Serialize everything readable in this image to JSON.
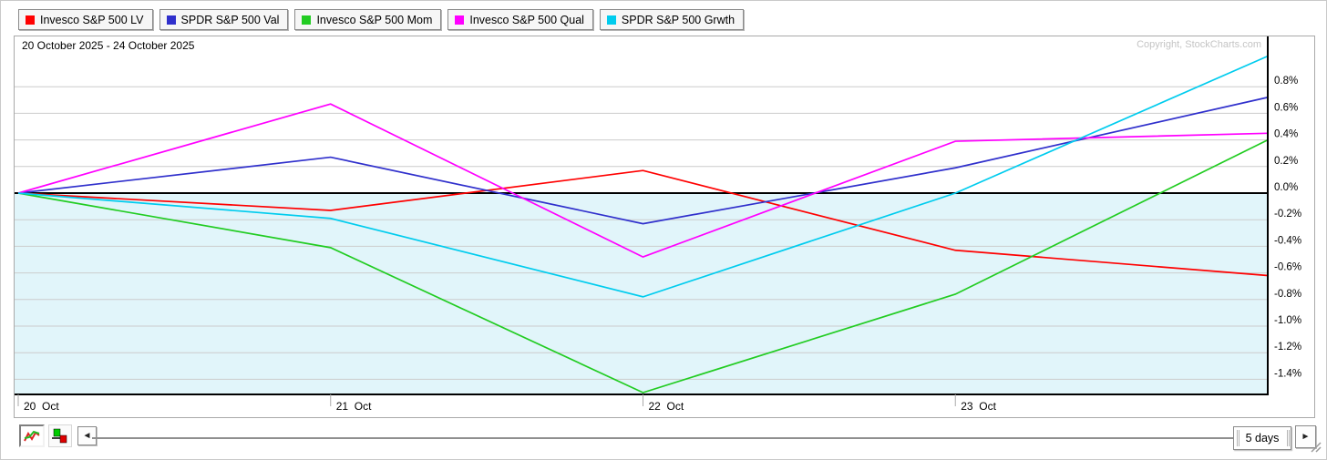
{
  "header": {
    "date_range": "20 October 2025 - 24 October 2025",
    "copyright": "Copyright, StockCharts.com"
  },
  "legend": {
    "items": [
      {
        "label": "Invesco S&P 500 LV",
        "color": "#FF0000"
      },
      {
        "label": "SPDR S&P 500 Val",
        "color": "#3030CC"
      },
      {
        "label": "Invesco S&P 500 Mom",
        "color": "#22CC22"
      },
      {
        "label": "Invesco S&P 500 Qual",
        "color": "#FF00FF"
      },
      {
        "label": "SPDR S&P 500 Grwth",
        "color": "#00CCEE"
      }
    ]
  },
  "chart_data": {
    "type": "line",
    "title": "20 October 2025 - 24 October 2025",
    "x": [
      "20 Oct",
      "21 Oct",
      "22 Oct",
      "23 Oct",
      "24 Oct"
    ],
    "x_axis_tick_labels": [
      "20  Oct",
      "21  Oct",
      "22  Oct",
      "23  Oct"
    ],
    "y_unit": "%",
    "y_tick_labels": [
      "0.8%",
      "0.6%",
      "0.4%",
      "0.2%",
      "0.0%",
      "-0.2%",
      "-0.4%",
      "-0.6%",
      "-0.8%",
      "-1.0%",
      "-1.2%",
      "-1.4%"
    ],
    "y_ticks": [
      0.8,
      0.6,
      0.4,
      0.2,
      0.0,
      -0.2,
      -0.4,
      -0.6,
      -0.8,
      -1.0,
      -1.2,
      -1.4
    ],
    "ylim": [
      -1.51,
      1.18
    ],
    "grid": true,
    "legend_position": "top",
    "series": [
      {
        "name": "Invesco S&P 500 LV",
        "color": "#FF0000",
        "values": [
          0,
          -0.13,
          0.17,
          -0.43,
          -0.62
        ]
      },
      {
        "name": "SPDR S&P 500 Val",
        "color": "#3030CC",
        "values": [
          0,
          0.27,
          -0.23,
          0.19,
          0.72
        ]
      },
      {
        "name": "Invesco S&P 500 Mom",
        "color": "#22CC22",
        "values": [
          0,
          -0.41,
          -1.5,
          -0.76,
          0.4
        ]
      },
      {
        "name": "Invesco S&P 500 Qual",
        "color": "#FF00FF",
        "values": [
          0,
          0.67,
          -0.48,
          0.39,
          0.45
        ]
      },
      {
        "name": "SPDR S&P 500 Grwth",
        "color": "#00CCEE",
        "values": [
          0,
          -0.19,
          -0.78,
          0.0,
          1.03
        ]
      }
    ],
    "colors": {
      "grid": "#cccccc",
      "zero_line": "#000000",
      "axis": "#000000",
      "below_zero_fill": "#E1F5FA",
      "tick": "#aaaaaa"
    }
  },
  "toolbar": {
    "range_label": "5 days",
    "left_arrow": "◄",
    "right_arrow": "►",
    "icons": [
      "line-chart-icon",
      "candlestick-icon",
      "resize-grip-icon"
    ]
  }
}
